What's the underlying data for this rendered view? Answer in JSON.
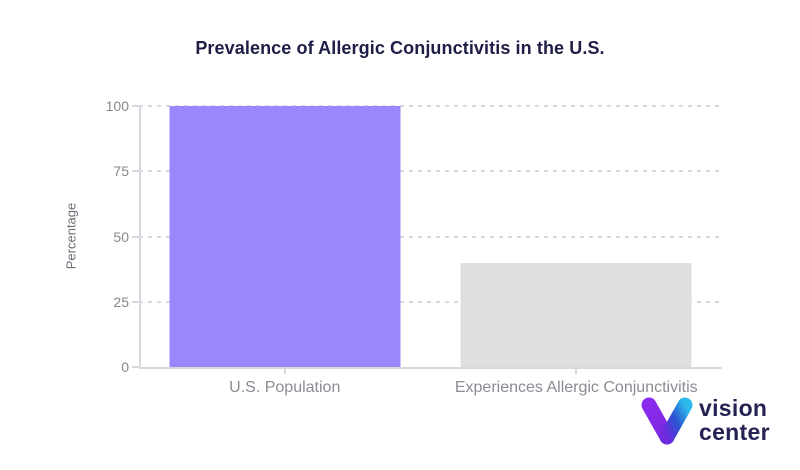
{
  "chart_data": {
    "type": "bar",
    "title": "Prevalence of Allergic Conjunctivitis in the U.S.",
    "categories": [
      "U.S. Population",
      "Experiences Allergic Conjunctivitis"
    ],
    "values": [
      100,
      40
    ],
    "bar_colors": [
      "#9c86fb",
      "#e0dfdf"
    ],
    "xlabel": "",
    "ylabel": "Percentage",
    "ylim": [
      0,
      100
    ],
    "yticks": [
      0,
      25,
      50,
      75,
      100
    ],
    "grid": "horizontal-dashed",
    "legend": "none"
  },
  "colors": {
    "title_text": "#1e1e46",
    "axis_line": "#d8d8de",
    "gridline": "#d8d8e4",
    "tick_label": "#87878f",
    "category_label": "#8b8b93",
    "y_axis_title": "#6e6e7a",
    "background": "#ffffff"
  },
  "logo": {
    "line1": "vision",
    "line2": "center",
    "text_color": "#252353",
    "icon_purple_top": "#8b2bee",
    "icon_purple_bottom": "#7b2ae0",
    "icon_blue_top": "#2cb9ec",
    "icon_blue_mid": "#2b53cf"
  }
}
